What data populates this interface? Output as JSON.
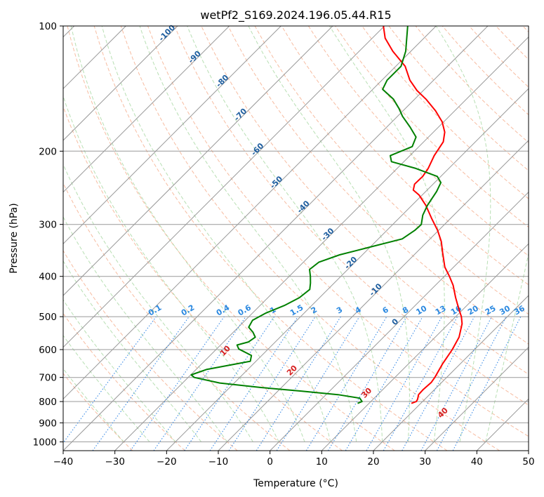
{
  "chart_data": {
    "type": "line",
    "title": "wetPf2_S169.2024.196.05.44.R15",
    "xlabel": "Temperature (°C)",
    "ylabel": "Pressure (hPa)",
    "xlim": [
      -40,
      50
    ],
    "ylim": [
      1050,
      100
    ],
    "y_scale": "log",
    "x_ticks": [
      -40,
      -30,
      -20,
      -10,
      0,
      10,
      20,
      30,
      40,
      50
    ],
    "y_ticks": [
      100,
      200,
      300,
      400,
      500,
      600,
      700,
      800,
      900,
      1000
    ],
    "grid": true,
    "skew": "skew-T log-P diagram",
    "colors": {
      "temperature": "#ff0000",
      "dewpoint": "#008000",
      "isotherm": "#999999",
      "dry_adiabat": "#f4a582",
      "moist_adiabat": "#a6d7a0",
      "mixing_ratio": "#3c8ce6",
      "isotherm_label": "#1f5fa0",
      "mixing_ratio_label": "#2a88e0",
      "dry_adiabat_label": "#d62020"
    },
    "isotherm_labels": [
      "-100",
      "-90",
      "-80",
      "-70",
      "-60",
      "-50",
      "-40",
      "-30",
      "-20",
      "-10",
      "0"
    ],
    "isotherm_label_values": [
      -100,
      -90,
      -80,
      -70,
      -60,
      -50,
      -40,
      -30,
      -20,
      -10,
      0
    ],
    "mixing_ratio_labels": [
      "0.1",
      "0.2",
      "0.4",
      "0.6",
      "1",
      "1.5",
      "2",
      "3",
      "4",
      "6",
      "8",
      "10",
      "13",
      "16",
      "20",
      "25",
      "30",
      "36"
    ],
    "mixing_ratio_values": [
      0.1,
      0.2,
      0.4,
      0.6,
      1,
      1.5,
      2,
      3,
      4,
      6,
      8,
      10,
      13,
      16,
      20,
      25,
      30,
      36
    ],
    "dry_adiabat_labels": [
      "10",
      "20",
      "30",
      "40"
    ],
    "dry_adiabat_values": [
      10,
      20,
      30,
      40
    ],
    "series": [
      {
        "name": "temperature",
        "points": [
          [
            808,
            18.2
          ],
          [
            800,
            18.8
          ],
          [
            790,
            18.6
          ],
          [
            770,
            17.9
          ],
          [
            750,
            17.8
          ],
          [
            720,
            18.0
          ],
          [
            700,
            17.7
          ],
          [
            650,
            16.6
          ],
          [
            600,
            15.7
          ],
          [
            560,
            14.6
          ],
          [
            520,
            12.6
          ],
          [
            500,
            11.1
          ],
          [
            480,
            9.2
          ],
          [
            450,
            6.3
          ],
          [
            420,
            3.4
          ],
          [
            400,
            1.0
          ],
          [
            380,
            -1.7
          ],
          [
            350,
            -5.0
          ],
          [
            330,
            -7.3
          ],
          [
            310,
            -10.2
          ],
          [
            290,
            -13.7
          ],
          [
            270,
            -17.3
          ],
          [
            255,
            -20.6
          ],
          [
            248,
            -22.7
          ],
          [
            240,
            -23.6
          ],
          [
            230,
            -23.5
          ],
          [
            220,
            -24.0
          ],
          [
            205,
            -25.3
          ],
          [
            190,
            -26.2
          ],
          [
            180,
            -27.8
          ],
          [
            170,
            -30.3
          ],
          [
            160,
            -33.7
          ],
          [
            150,
            -37.8
          ],
          [
            143,
            -41.2
          ],
          [
            135,
            -44.6
          ],
          [
            125,
            -48.2
          ],
          [
            115,
            -53.5
          ],
          [
            107,
            -57.5
          ],
          [
            100,
            -60.2
          ]
        ]
      },
      {
        "name": "dewpoint",
        "points": [
          [
            808,
            7.8
          ],
          [
            800,
            8.3
          ],
          [
            785,
            7.2
          ],
          [
            770,
            2.3
          ],
          [
            755,
            -5.5
          ],
          [
            740,
            -14.0
          ],
          [
            722,
            -22.8
          ],
          [
            700,
            -28.8
          ],
          [
            690,
            -29.9
          ],
          [
            670,
            -28.0
          ],
          [
            640,
            -21.1
          ],
          [
            620,
            -22.0
          ],
          [
            598,
            -25.7
          ],
          [
            585,
            -26.8
          ],
          [
            575,
            -25.2
          ],
          [
            560,
            -24.8
          ],
          [
            545,
            -26.2
          ],
          [
            530,
            -28.0
          ],
          [
            510,
            -28.6
          ],
          [
            490,
            -27.4
          ],
          [
            470,
            -25.3
          ],
          [
            450,
            -23.9
          ],
          [
            430,
            -23.5
          ],
          [
            415,
            -24.6
          ],
          [
            400,
            -25.9
          ],
          [
            385,
            -27.4
          ],
          [
            370,
            -27.0
          ],
          [
            355,
            -24.4
          ],
          [
            340,
            -20.0
          ],
          [
            325,
            -15.4
          ],
          [
            310,
            -14.6
          ],
          [
            300,
            -14.5
          ],
          [
            285,
            -16.0
          ],
          [
            270,
            -17.0
          ],
          [
            250,
            -17.9
          ],
          [
            238,
            -18.8
          ],
          [
            230,
            -20.7
          ],
          [
            220,
            -26.4
          ],
          [
            212,
            -32.4
          ],
          [
            205,
            -33.8
          ],
          [
            195,
            -31.3
          ],
          [
            185,
            -32.4
          ],
          [
            175,
            -35.5
          ],
          [
            165,
            -39.0
          ],
          [
            158,
            -41.2
          ],
          [
            150,
            -44.1
          ],
          [
            142,
            -48.1
          ],
          [
            135,
            -49.0
          ],
          [
            125,
            -49.0
          ],
          [
            115,
            -51.0
          ],
          [
            100,
            -55.5
          ]
        ]
      }
    ]
  }
}
